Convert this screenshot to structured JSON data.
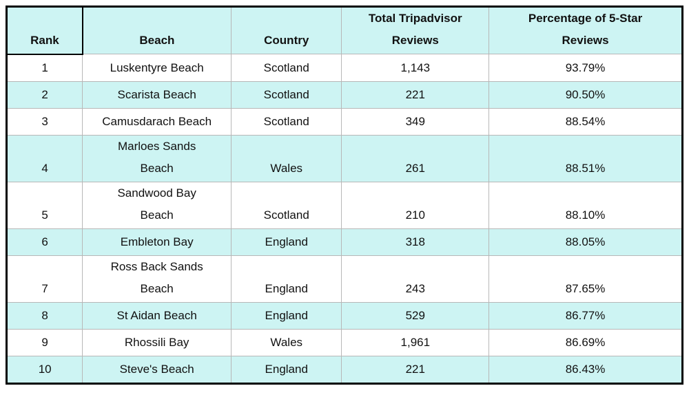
{
  "chart_data": {
    "type": "table",
    "columns": [
      "Rank",
      "Beach",
      "Country",
      "Total Tripadvisor\nReviews",
      "Percentage of 5-Star\nReviews"
    ],
    "rows": [
      [
        "1",
        "Luskentyre Beach",
        "Scotland",
        "1,143",
        "93.79%"
      ],
      [
        "2",
        "Scarista Beach",
        "Scotland",
        "221",
        "90.50%"
      ],
      [
        "3",
        "Camusdarach Beach",
        "Scotland",
        "349",
        "88.54%"
      ],
      [
        "4",
        "Marloes Sands\nBeach",
        "Wales",
        "261",
        "88.51%"
      ],
      [
        "5",
        "Sandwood Bay\nBeach",
        "Scotland",
        "210",
        "88.10%"
      ],
      [
        "6",
        "Embleton Bay",
        "England",
        "318",
        "88.05%"
      ],
      [
        "7",
        "Ross Back Sands\nBeach",
        "England",
        "243",
        "87.65%"
      ],
      [
        "8",
        "St Aidan Beach",
        "England",
        "529",
        "86.77%"
      ],
      [
        "9",
        "Rhossili Bay",
        "Wales",
        "1,961",
        "86.69%"
      ],
      [
        "10",
        "Steve's Beach",
        "England",
        "221",
        "86.43%"
      ]
    ],
    "layout": {
      "banding": "even rows filled",
      "vertical_align": "bottom",
      "grid": true
    },
    "colors": {
      "band_fill": "#cdf4f3",
      "row_fill": "#ffffff",
      "grid_line": "#b7b7b7",
      "outer_border": "#000000",
      "text": "#111111"
    }
  }
}
